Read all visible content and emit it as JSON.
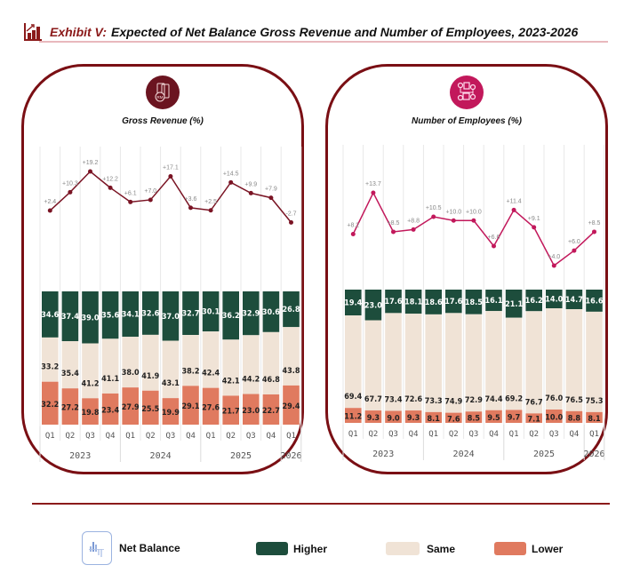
{
  "header": {
    "label": "Exhibit  V:",
    "title": "Expected of Net Balance Gross Revenue and Number of Employees, 2023-2026",
    "icon": "bar-chart-growth-icon"
  },
  "colors": {
    "brand": "#8b1a1a",
    "higher": "#1d4d3c",
    "same": "#f0e3d6",
    "lower": "#e07a5f",
    "revenue_line": "#7a1424",
    "employees_line": "#c2185b"
  },
  "legend": {
    "net_balance": "Net Balance",
    "higher": "Higher",
    "same": "Same",
    "lower": "Lower"
  },
  "chart_data": [
    {
      "type": "bar",
      "stacked": true,
      "title": "Gross Revenue (%)",
      "icon": "money-icon",
      "categories": [
        "Q1",
        "Q2",
        "Q3",
        "Q4",
        "Q1",
        "Q2",
        "Q3",
        "Q4",
        "Q1",
        "Q2",
        "Q3",
        "Q4",
        "Q1"
      ],
      "year_groups": [
        {
          "label": "2023",
          "count": 4
        },
        {
          "label": "2024",
          "count": 4
        },
        {
          "label": "2025",
          "count": 4
        },
        {
          "label": "2026",
          "count": 1
        }
      ],
      "series": [
        {
          "name": "Higher",
          "values": [
            34.6,
            37.4,
            39.0,
            35.6,
            34.1,
            32.6,
            37.0,
            32.7,
            30.1,
            36.2,
            32.9,
            30.6,
            26.8
          ]
        },
        {
          "name": "Same",
          "values": [
            33.2,
            35.4,
            41.2,
            41.1,
            38.0,
            41.9,
            43.1,
            38.2,
            42.4,
            42.1,
            44.2,
            46.8,
            43.8
          ]
        },
        {
          "name": "Lower",
          "values": [
            32.2,
            27.2,
            19.8,
            23.4,
            27.9,
            25.5,
            19.9,
            29.1,
            27.6,
            21.7,
            23.0,
            22.7,
            29.4
          ]
        }
      ],
      "net_balance": {
        "name": "Net Balance",
        "values": [
          2.4,
          10.3,
          19.2,
          12.2,
          6.1,
          7.0,
          17.1,
          3.6,
          2.5,
          14.5,
          9.9,
          7.9,
          -2.7
        ],
        "labels": [
          "+2.4",
          "+10.3",
          "+19.2",
          "+12.2",
          "+6.1",
          "+7.0",
          "+17.1",
          "+3.6",
          "+2.5",
          "+14.5",
          "+9.9",
          "+7.9",
          "-2.7"
        ]
      },
      "ylim": [
        0,
        100
      ]
    },
    {
      "type": "bar",
      "stacked": true,
      "title": "Number of Employees (%)",
      "icon": "employees-network-icon",
      "categories": [
        "Q1",
        "Q2",
        "Q3",
        "Q4",
        "Q1",
        "Q2",
        "Q3",
        "Q4",
        "Q1",
        "Q2",
        "Q3",
        "Q4",
        "Q1"
      ],
      "year_groups": [
        {
          "label": "2023",
          "count": 4
        },
        {
          "label": "2024",
          "count": 4
        },
        {
          "label": "2025",
          "count": 4
        },
        {
          "label": "2026",
          "count": 1
        }
      ],
      "series": [
        {
          "name": "Higher",
          "values": [
            19.4,
            23.0,
            17.6,
            18.1,
            18.6,
            17.6,
            18.5,
            16.1,
            21.1,
            16.2,
            14.0,
            14.7,
            16.6
          ]
        },
        {
          "name": "Same",
          "values": [
            69.4,
            67.7,
            73.4,
            72.6,
            73.3,
            74.9,
            72.9,
            74.4,
            69.2,
            76.7,
            76.0,
            76.5,
            75.3
          ]
        },
        {
          "name": "Lower",
          "values": [
            11.2,
            9.3,
            9.0,
            9.3,
            8.1,
            7.6,
            8.5,
            9.5,
            9.7,
            7.1,
            10.0,
            8.8,
            8.1
          ]
        }
      ],
      "net_balance": {
        "name": "Net Balance",
        "values": [
          8.2,
          13.7,
          8.5,
          8.8,
          10.5,
          10.0,
          10.0,
          6.6,
          11.4,
          9.1,
          4.0,
          6.0,
          8.5
        ],
        "labels": [
          "+8.2",
          "+13.7",
          "+8.5",
          "+8.8",
          "+10.5",
          "+10.0",
          "+10.0",
          "+6.6",
          "+11.4",
          "+9.1",
          "+4.0",
          "+6.0",
          "+8.5"
        ]
      },
      "ylim": [
        0,
        100
      ]
    }
  ]
}
